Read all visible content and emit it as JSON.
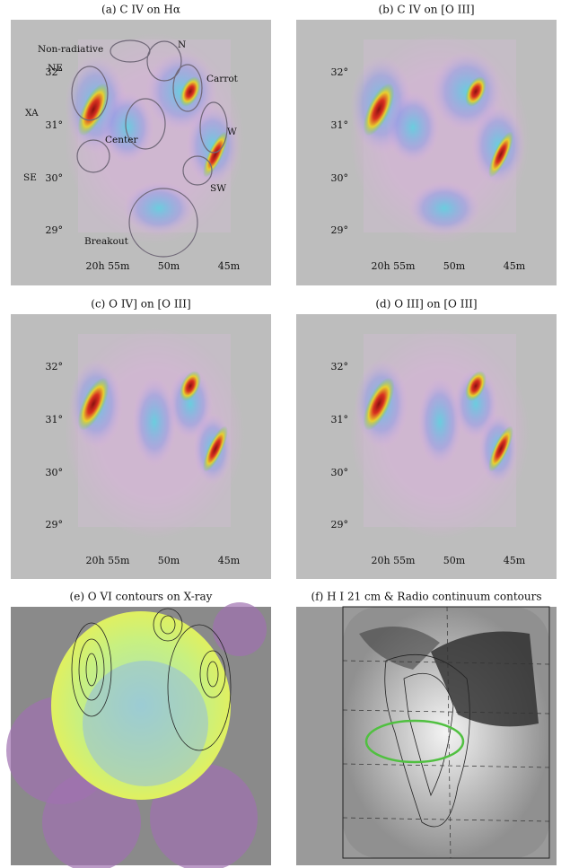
{
  "panels": [
    {
      "title": "(a) C IV on Hα",
      "y_ticks": [
        "32°",
        "31°",
        "30°",
        "29°"
      ],
      "x_ticks": [
        "20h 55m",
        "50m",
        "45m"
      ],
      "regions": [
        "Non-radiative",
        "N",
        "NE",
        "Carrot",
        "XA",
        "W",
        "Center",
        "SE",
        "SW",
        "Breakout"
      ]
    },
    {
      "title": "(b) C IV on [O III]",
      "y_ticks": [
        "32°",
        "31°",
        "30°",
        "29°"
      ],
      "x_ticks": [
        "20h 55m",
        "50m",
        "45m"
      ]
    },
    {
      "title": "(c) O IV] on [O III]",
      "y_ticks": [
        "32°",
        "31°",
        "30°",
        "29°"
      ],
      "x_ticks": [
        "20h 55m",
        "50m",
        "45m"
      ]
    },
    {
      "title": "(d) O III] on [O III]",
      "y_ticks": [
        "32°",
        "31°",
        "30°",
        "29°"
      ],
      "x_ticks": [
        "20h 55m",
        "50m",
        "45m"
      ]
    },
    {
      "title": "(e) O VI contours on X-ray"
    },
    {
      "title": "(f) H I 21 cm & Radio continuum contours"
    }
  ]
}
